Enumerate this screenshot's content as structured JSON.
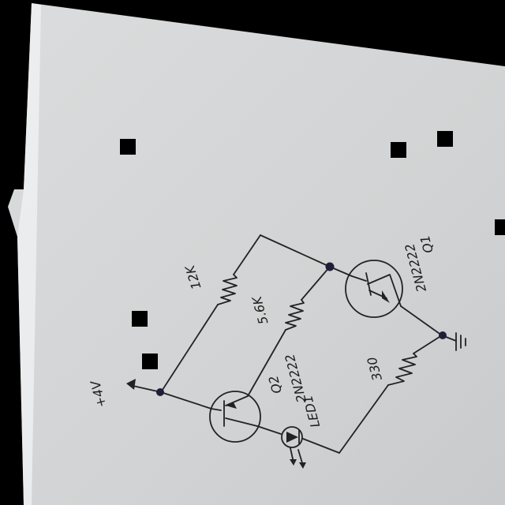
{
  "colors": {
    "background": "#000000",
    "paper": "#d3d5d6",
    "ink": "#222222",
    "junction": "#1e1e3a"
  },
  "labels": {
    "q1": "Q1",
    "q1_part": "2N2222",
    "r_12k": "12K",
    "r_5k6": "5.6K",
    "r_330": "330",
    "q2": "Q2",
    "q2_part": "2N2222",
    "led1": "LED1",
    "vdd": "+4V"
  },
  "icons": [
    "ground-symbol",
    "led-symbol",
    "npn-transistor-symbol",
    "resistor-symbol"
  ]
}
